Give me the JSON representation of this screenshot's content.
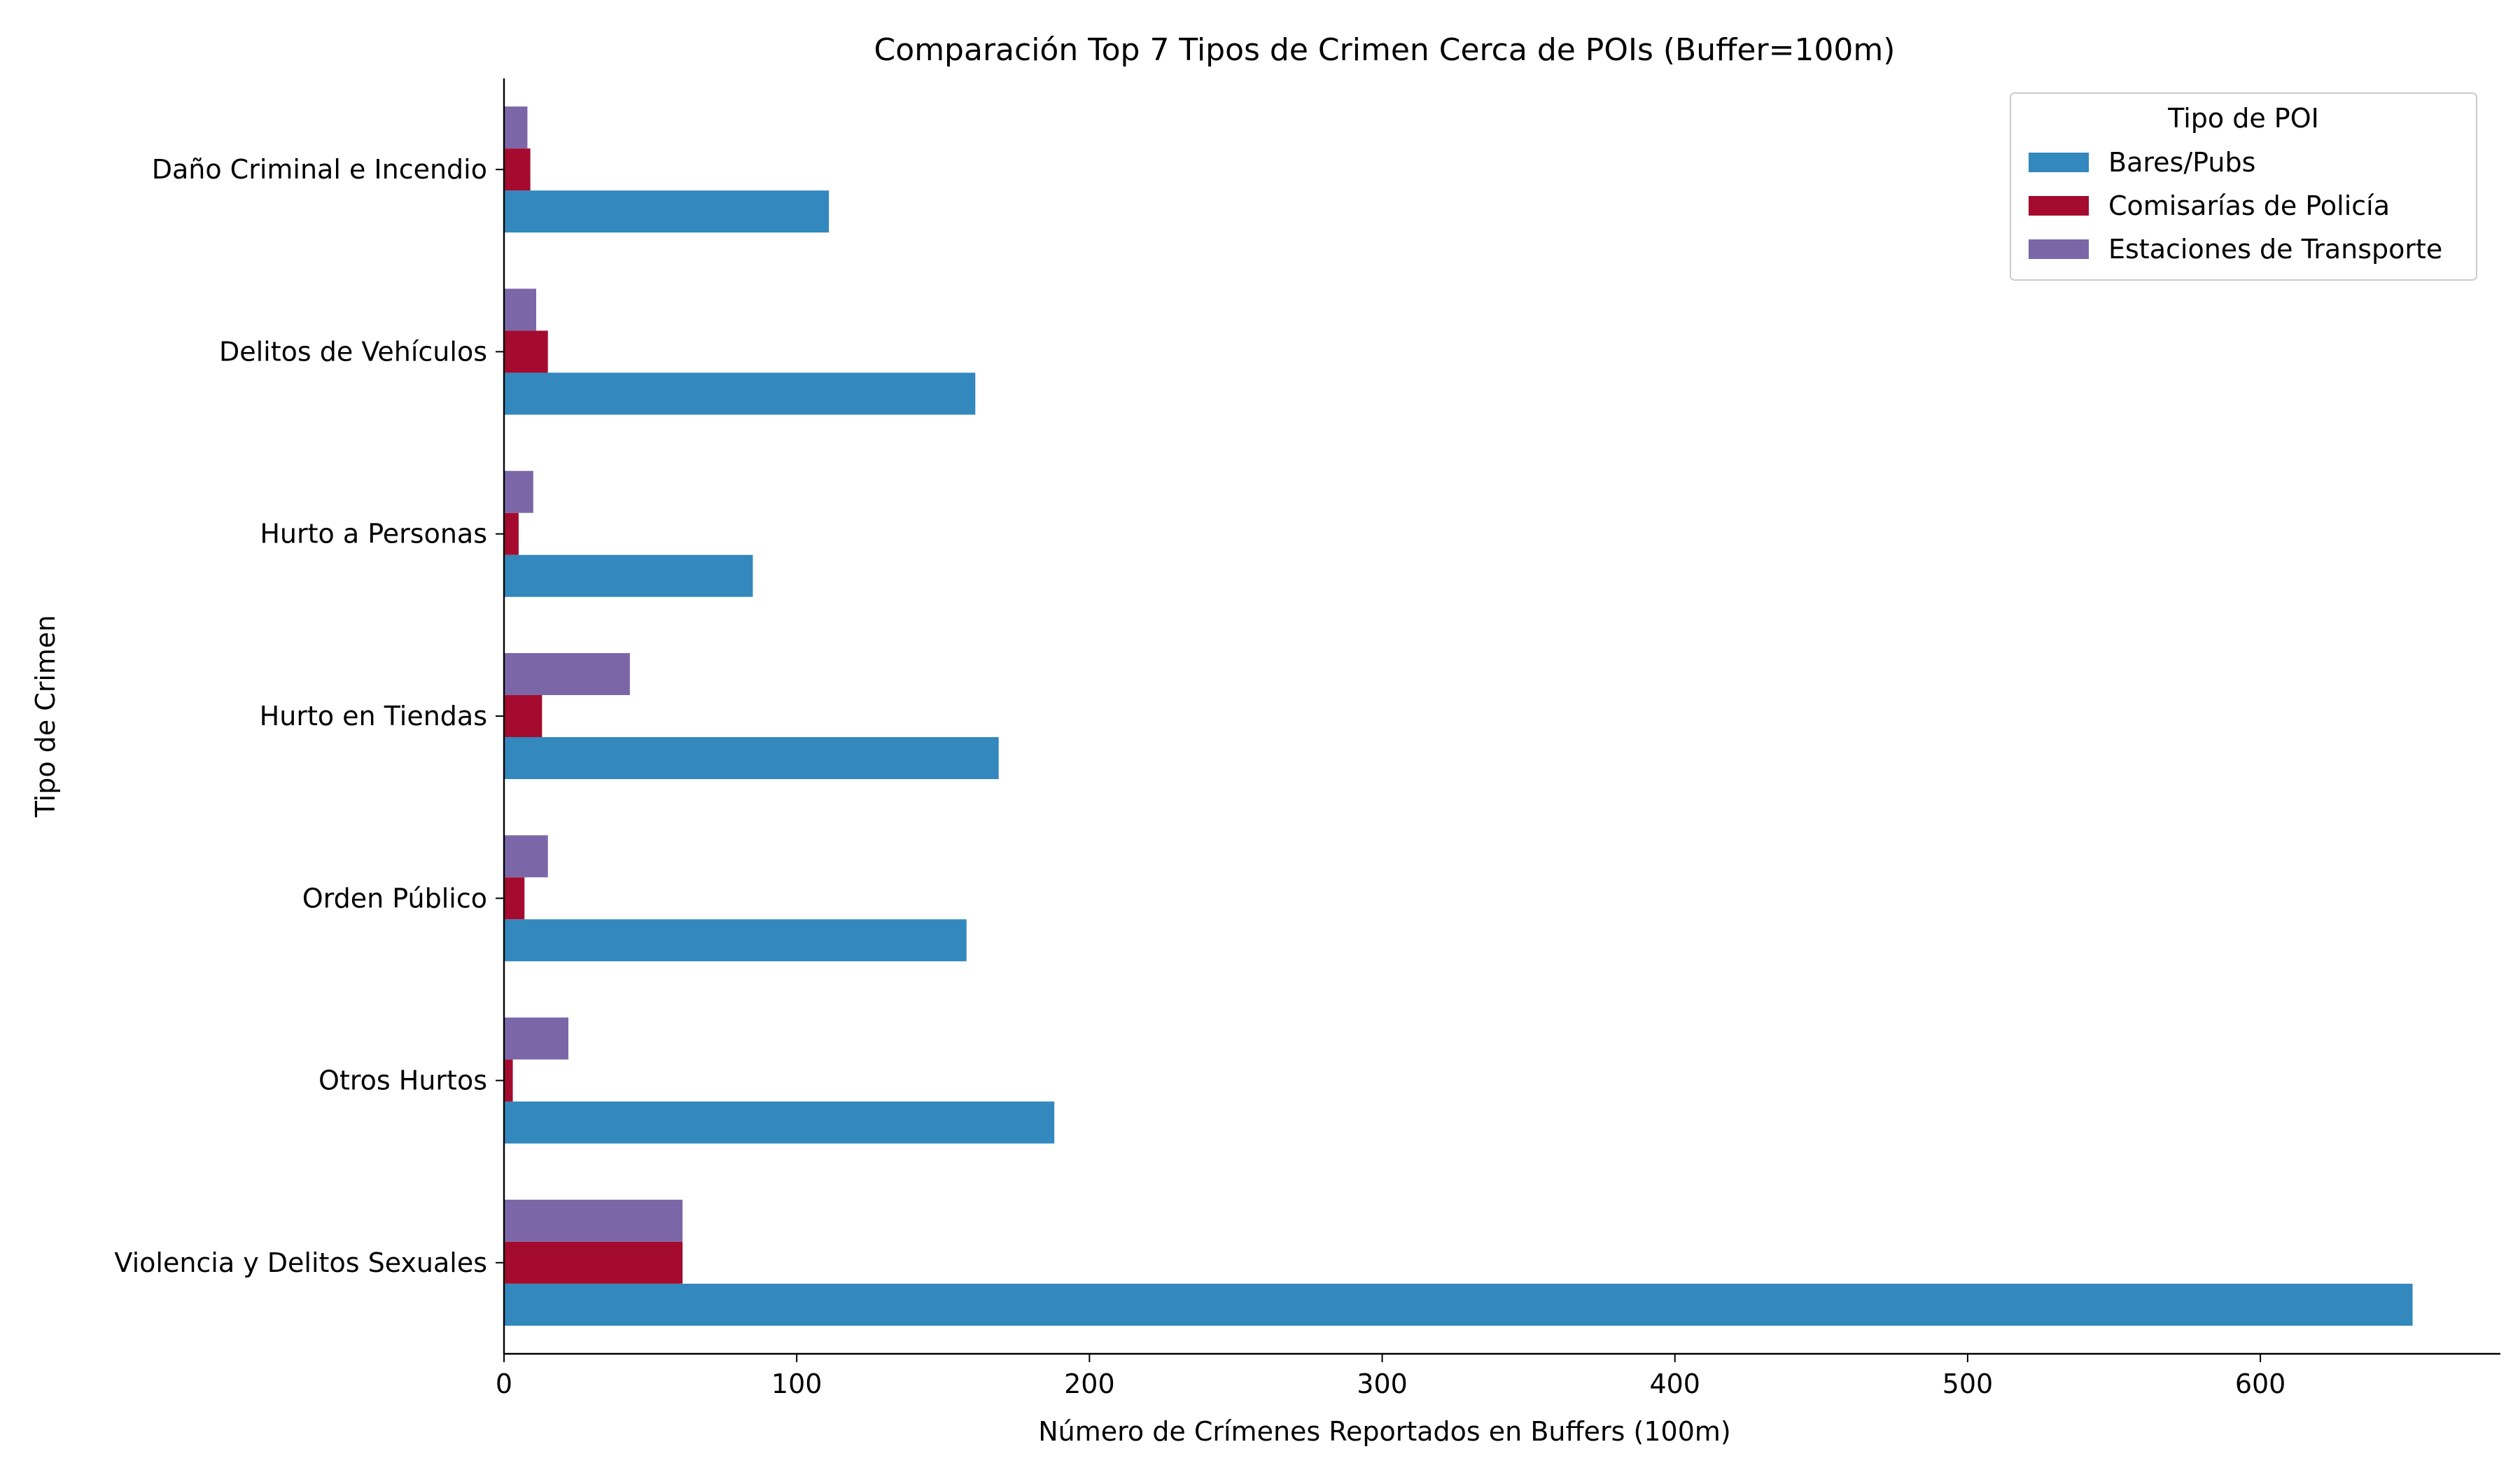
{
  "chart_data": {
    "type": "bar",
    "orientation": "horizontal",
    "title": "Comparación Top 7 Tipos de Crimen Cerca de POIs (Buffer=100m)",
    "xlabel": "Número de Crímenes Reportados en Buffers (100m)",
    "ylabel": "Tipo de Crimen",
    "xlim": [
      0,
      682
    ],
    "xticks": [
      0,
      100,
      200,
      300,
      400,
      500,
      600
    ],
    "grid": false,
    "legend": {
      "title": "Tipo de POI",
      "position": "top-right"
    },
    "categories": [
      "Daño Criminal e Incendio",
      "Delitos de Vehículos",
      "Hurto a Personas",
      "Hurto en Tiendas",
      "Orden Público",
      "Otros Hurtos",
      "Violencia y Delitos Sexuales"
    ],
    "series": [
      {
        "name": "Bares/Pubs",
        "color": "#3388bd",
        "values": [
          111,
          161,
          85,
          169,
          158,
          188,
          652
        ]
      },
      {
        "name": "Comisarías de Policía",
        "color": "#a50b2e",
        "values": [
          9,
          15,
          5,
          13,
          7,
          3,
          61
        ]
      },
      {
        "name": "Estaciones de Transporte",
        "color": "#7b67a8",
        "values": [
          8,
          11,
          10,
          43,
          15,
          22,
          61
        ]
      }
    ]
  }
}
